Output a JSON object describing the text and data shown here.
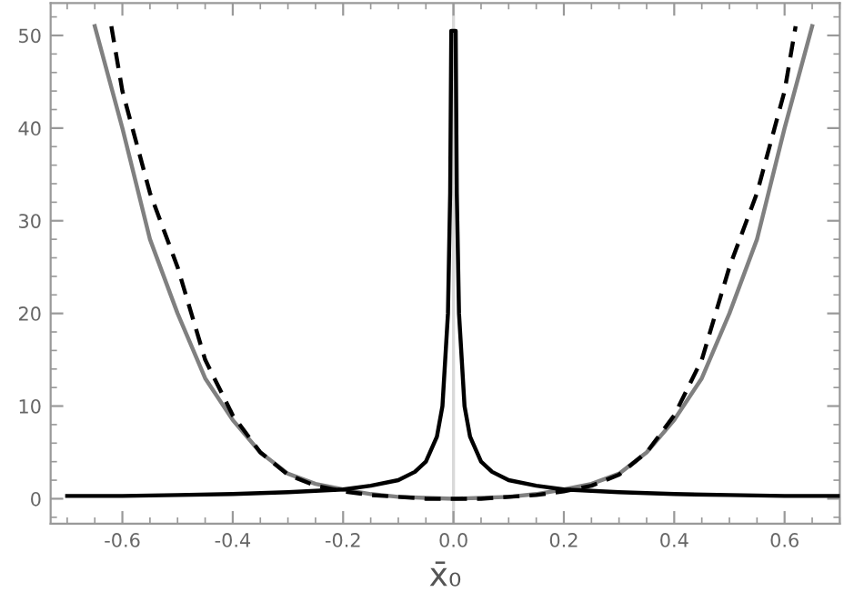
{
  "chart_data": {
    "type": "line",
    "xlabel": "x̄₀",
    "xlim": [
      -0.73,
      0.7
    ],
    "ylim": [
      -2.7,
      53.5
    ],
    "xticks": [
      {
        "value": -0.6,
        "label": "-0.6"
      },
      {
        "value": -0.4,
        "label": "-0.4"
      },
      {
        "value": -0.2,
        "label": "-0.2"
      },
      {
        "value": 0.0,
        "label": "0.0"
      },
      {
        "value": 0.2,
        "label": "0.2"
      },
      {
        "value": 0.4,
        "label": "0.4"
      },
      {
        "value": 0.6,
        "label": "0.6"
      }
    ],
    "yticks": [
      0,
      10,
      20,
      30,
      40,
      50
    ],
    "grid": false,
    "legend": false,
    "marker": "none",
    "ref_lines": [
      {
        "axis": "x",
        "value": 0,
        "color": "#d9d9d9"
      }
    ],
    "series": [
      {
        "color": "#808080",
        "line_style": "solid",
        "x": [
          -0.65,
          -0.6,
          -0.55,
          -0.5,
          -0.45,
          -0.4,
          -0.35,
          -0.3,
          -0.25,
          -0.2,
          -0.15,
          -0.1,
          -0.05,
          0,
          0.05,
          0.1,
          0.15,
          0.2,
          0.25,
          0.3,
          0.35,
          0.4,
          0.45,
          0.5,
          0.55,
          0.6,
          0.65
        ],
        "values": [
          51,
          40,
          28,
          20,
          13,
          8.5,
          5,
          2.7,
          1.6,
          1.0,
          0.5,
          0.2,
          0.1,
          0,
          0.1,
          0.2,
          0.5,
          1.0,
          1.6,
          2.7,
          5,
          8.5,
          13,
          20,
          28,
          40,
          51
        ]
      },
      {
        "color": "#000000",
        "line_style": "dashed",
        "x": [
          -0.62,
          -0.6,
          -0.55,
          -0.5,
          -0.45,
          -0.4,
          -0.35,
          -0.3,
          -0.25,
          -0.2,
          -0.15,
          -0.1,
          -0.05,
          0,
          0.05,
          0.1,
          0.15,
          0.2,
          0.25,
          0.3,
          0.35,
          0.4,
          0.45,
          0.5,
          0.55,
          0.6,
          0.62
        ],
        "values": [
          51,
          44,
          33,
          25,
          15,
          9,
          5,
          2.6,
          1.4,
          0.8,
          0.4,
          0.2,
          0,
          0,
          0,
          0.2,
          0.4,
          0.8,
          1.4,
          2.6,
          5,
          9,
          15,
          25,
          33,
          44,
          51
        ]
      },
      {
        "color": "#000000",
        "line_style": "solid",
        "x": [
          -0.7,
          -0.6,
          -0.5,
          -0.4,
          -0.3,
          -0.2,
          -0.15,
          -0.1,
          -0.07,
          -0.05,
          -0.03,
          -0.02,
          -0.01,
          -0.006,
          -0.004,
          0.004,
          0.006,
          0.01,
          0.02,
          0.03,
          0.05,
          0.07,
          0.1,
          0.15,
          0.2,
          0.3,
          0.4,
          0.5,
          0.6,
          0.7
        ],
        "values": [
          0.3,
          0.3,
          0.4,
          0.5,
          0.7,
          1.0,
          1.4,
          2.0,
          2.9,
          4,
          6.7,
          10,
          20,
          33,
          50.5,
          50.5,
          33,
          20,
          10,
          6.7,
          4,
          2.9,
          2.0,
          1.4,
          1.0,
          0.7,
          0.5,
          0.4,
          0.3,
          0.3
        ]
      }
    ]
  }
}
